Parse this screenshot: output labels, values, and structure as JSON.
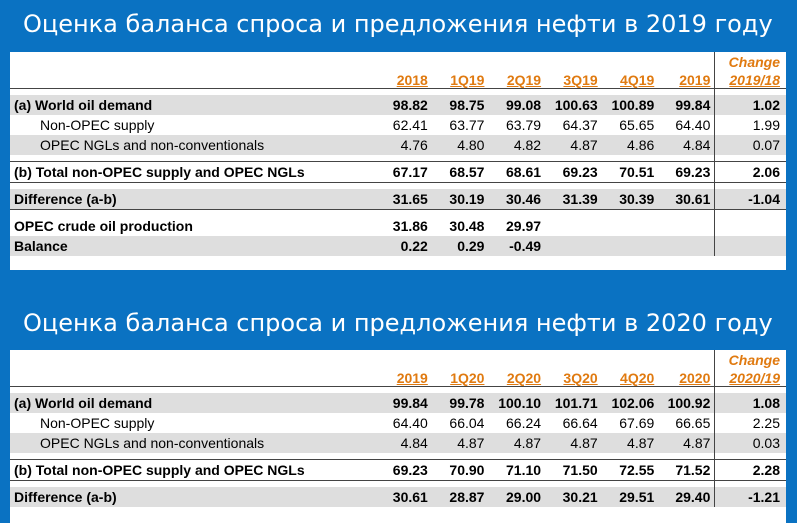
{
  "sections": [
    {
      "title": "Оценка баланса спроса и предложения нефти в 2019 году",
      "change_label_line1": "Change",
      "change_label_line2": "2019/18",
      "columns": [
        "2018",
        "1Q19",
        "2Q19",
        "3Q19",
        "4Q19",
        "2019"
      ],
      "rows": [
        {
          "label": "(a) World oil demand",
          "values": [
            "98.82",
            "98.75",
            "99.08",
            "100.63",
            "100.89",
            "99.84"
          ],
          "change": "1.02"
        },
        {
          "label": "Non-OPEC supply",
          "values": [
            "62.41",
            "63.77",
            "63.79",
            "64.37",
            "65.65",
            "64.40"
          ],
          "change": "1.99"
        },
        {
          "label": "OPEC NGLs and non-conventionals",
          "values": [
            "4.76",
            "4.80",
            "4.82",
            "4.87",
            "4.86",
            "4.84"
          ],
          "change": "0.07"
        },
        {
          "label": "(b) Total non-OPEC supply and OPEC NGLs",
          "values": [
            "67.17",
            "68.57",
            "68.61",
            "69.23",
            "70.51",
            "69.23"
          ],
          "change": "2.06"
        },
        {
          "label": "Difference (a-b)",
          "values": [
            "31.65",
            "30.19",
            "30.46",
            "31.39",
            "30.39",
            "30.61"
          ],
          "change": "-1.04"
        },
        {
          "label": "OPEC crude oil production",
          "values": [
            "31.86",
            "30.48",
            "29.97",
            "",
            "",
            ""
          ],
          "change": ""
        },
        {
          "label": "Balance",
          "values": [
            "0.22",
            "0.29",
            "-0.49",
            "",
            "",
            ""
          ],
          "change": ""
        }
      ]
    },
    {
      "title": "Оценка баланса спроса и предложения нефти в 2020 году",
      "change_label_line1": "Change",
      "change_label_line2": "2020/19",
      "columns": [
        "2019",
        "1Q20",
        "2Q20",
        "3Q20",
        "4Q20",
        "2020"
      ],
      "rows": [
        {
          "label": "(a) World oil demand",
          "values": [
            "99.84",
            "99.78",
            "100.10",
            "101.71",
            "102.06",
            "100.92"
          ],
          "change": "1.08"
        },
        {
          "label": "Non-OPEC supply",
          "values": [
            "64.40",
            "66.04",
            "66.24",
            "66.64",
            "67.69",
            "66.65"
          ],
          "change": "2.25"
        },
        {
          "label": "OPEC NGLs and non-conventionals",
          "values": [
            "4.84",
            "4.87",
            "4.87",
            "4.87",
            "4.87",
            "4.87"
          ],
          "change": "0.03"
        },
        {
          "label": "(b) Total non-OPEC supply and OPEC NGLs",
          "values": [
            "69.23",
            "70.90",
            "71.10",
            "71.50",
            "72.55",
            "71.52"
          ],
          "change": "2.28"
        },
        {
          "label": "Difference (a-b)",
          "values": [
            "30.61",
            "28.87",
            "29.00",
            "30.21",
            "29.51",
            "29.40"
          ],
          "change": "-1.21"
        }
      ]
    }
  ],
  "colors": {
    "band": "#0a72c2",
    "header_orange": "#e07a10",
    "row_shade": "#dedede"
  }
}
